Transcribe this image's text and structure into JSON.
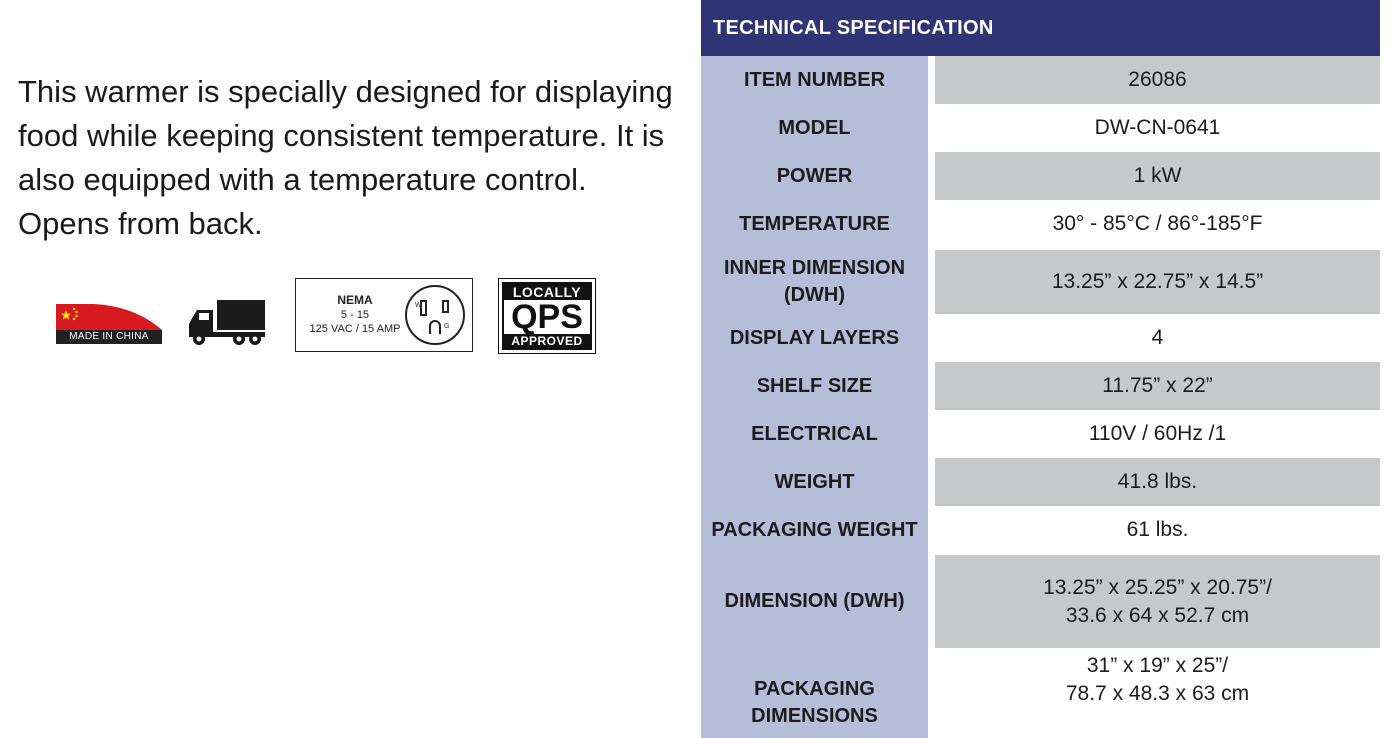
{
  "description": {
    "lines": [
      "This warmer is specially designed for displaying",
      "food while keeping consistent temperature. It is",
      "also equipped with a temperature control.",
      "Opens from back."
    ]
  },
  "badges": {
    "made_in_china": {
      "label": "MADE IN CHINA",
      "icon": "china-flag-icon"
    },
    "truck": {
      "icon": "truck-icon"
    },
    "nema": {
      "title": "NEMA",
      "sub": "5 - 15",
      "spec": "125 VAC / 15 AMP",
      "icon": "outlet-icon"
    },
    "qps": {
      "top": "LOCALLY",
      "mid": "QPS",
      "bottom": "APPROVED"
    }
  },
  "spec": {
    "title": "TECHNICAL SPECIFICATION",
    "rows": [
      {
        "label": "ITEM NUMBER",
        "value": "26086"
      },
      {
        "label": "MODEL",
        "value": "DW-CN-0641"
      },
      {
        "label": "POWER",
        "value": "1 kW"
      },
      {
        "label": "TEMPERATURE",
        "value": "30° - 85°C / 86°-185°F"
      },
      {
        "label": "INNER DIMENSION\n(DWH)",
        "value": "13.25” x 22.75” x 14.5”"
      },
      {
        "label": "DISPLAY LAYERS",
        "value": "4"
      },
      {
        "label": "SHELF SIZE",
        "value": "11.75” x 22”"
      },
      {
        "label": "ELECTRICAL",
        "value": "110V / 60Hz /1"
      },
      {
        "label": "WEIGHT",
        "value": "41.8 lbs."
      },
      {
        "label": "PACKAGING WEIGHT",
        "value": "61 lbs."
      },
      {
        "label": "DIMENSION (DWH)",
        "value": "13.25” x 25.25” x 20.75”/\n33.6 x 64 x 52.7 cm"
      },
      {
        "label": "PACKAGING\nDIMENSIONS",
        "value": "31” x 19” x 25”/\n78.7 x 48.3 x 63 cm"
      }
    ]
  },
  "colors": {
    "header": "#2e3474",
    "label_column": "#b5bdd9",
    "shaded_row": "#c7c8ca",
    "flag_red": "#d71920"
  }
}
